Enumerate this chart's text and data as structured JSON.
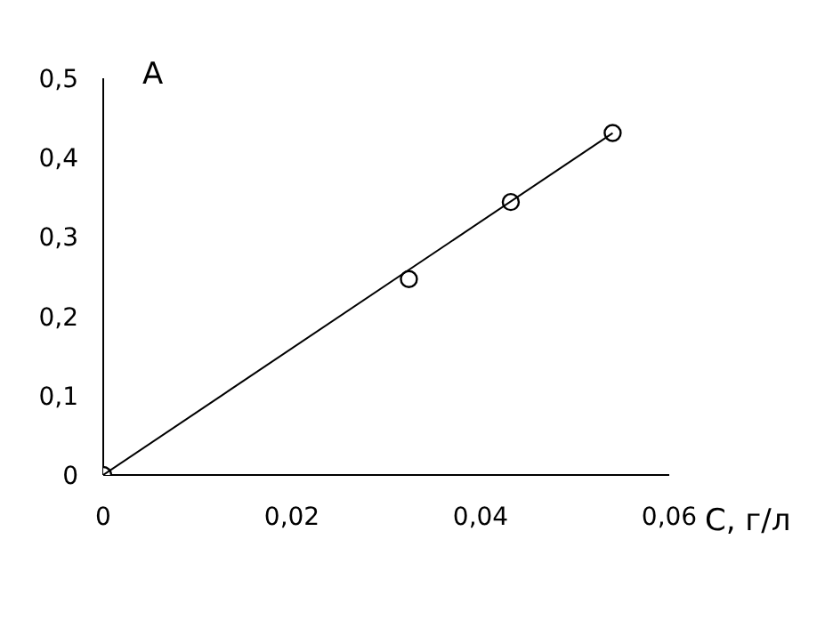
{
  "chart_data": {
    "type": "scatter",
    "xlabel": "С, г/л",
    "ylabel": "А",
    "xlim": [
      0,
      0.06
    ],
    "xticks": [
      0,
      {
        "value": 0.02,
        "label": "0,02"
      },
      {
        "value": 0.04,
        "label": "0,04"
      },
      {
        "value": 0.06,
        "label": "0,06"
      }
    ],
    "ylim": [
      0,
      0.5
    ],
    "yticks": [
      0,
      {
        "value": 0.1,
        "label": "0,1"
      },
      {
        "value": 0.2,
        "label": "0,2"
      },
      {
        "value": 0.3,
        "label": "0,3"
      },
      {
        "value": 0.4,
        "label": "0,4"
      },
      {
        "value": 0.5,
        "label": "0,5"
      }
    ],
    "grid": false,
    "legend": false,
    "series": [
      {
        "type": "scatter",
        "color": "#000000",
        "marker": "circle",
        "x": [
          0,
          0.0324,
          0.0432,
          0.054
        ],
        "values": [
          0,
          0.247,
          0.344,
          0.431
        ]
      },
      {
        "type": "line",
        "color": "#000000",
        "marker": "none",
        "line_style": "solid",
        "x": [
          0,
          0.054
        ],
        "values": [
          0,
          0.431
        ]
      }
    ]
  }
}
